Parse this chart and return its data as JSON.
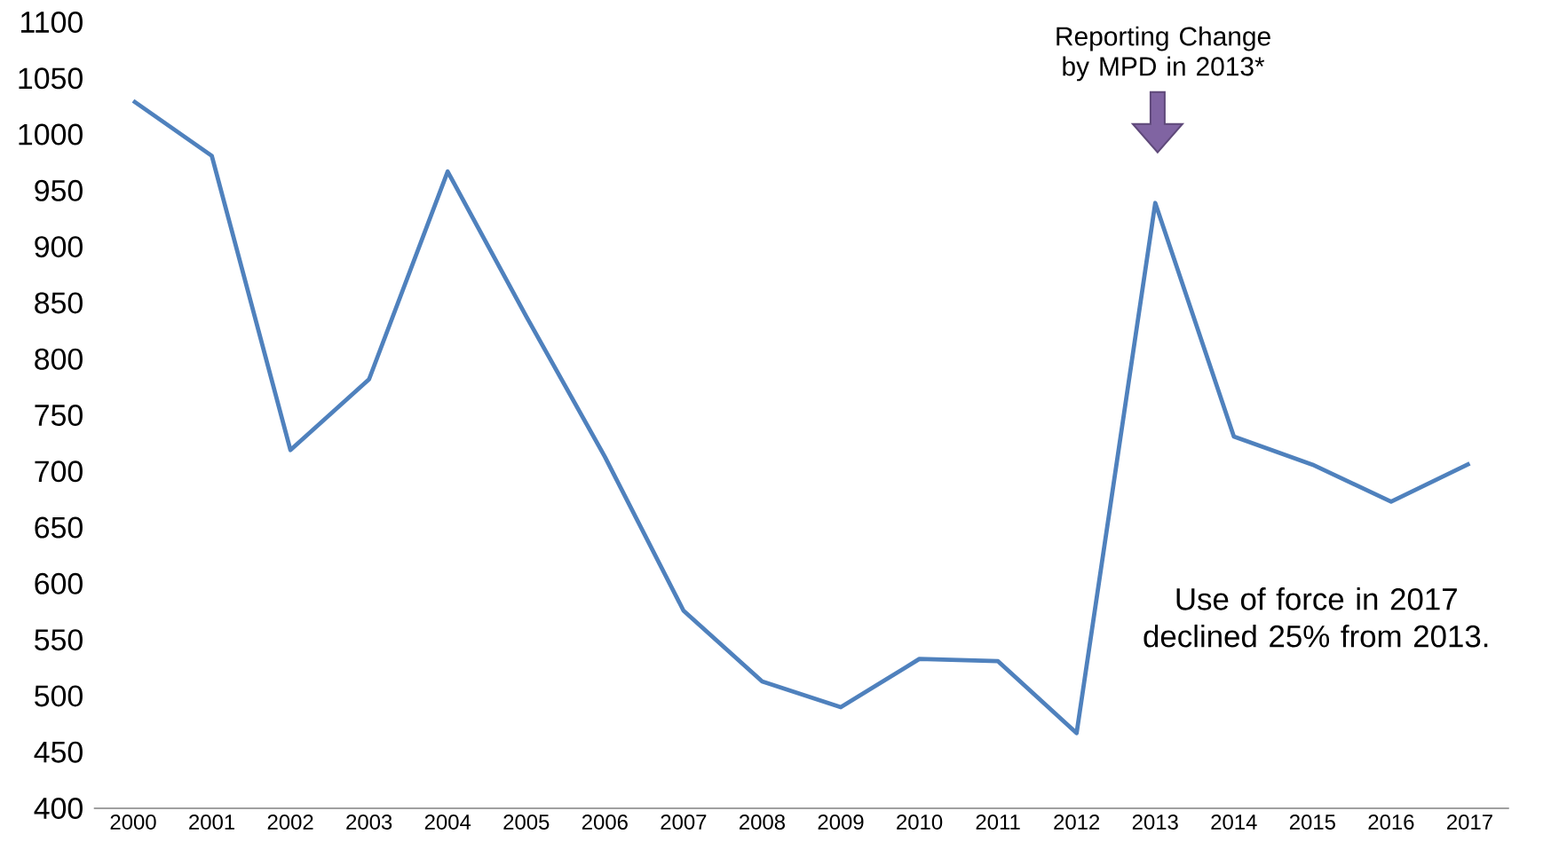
{
  "chart_data": {
    "type": "line",
    "categories": [
      "2000",
      "2001",
      "2002",
      "2003",
      "2004",
      "2005",
      "2006",
      "2007",
      "2008",
      "2009",
      "2010",
      "2011",
      "2012",
      "2013",
      "2014",
      "2015",
      "2016",
      "2017"
    ],
    "values": [
      1030,
      981,
      719,
      782,
      967,
      838,
      713,
      576,
      513,
      490,
      533,
      531,
      467,
      939,
      731,
      706,
      673,
      707
    ],
    "color": "#4f81bd",
    "ylim": [
      400,
      1100
    ],
    "yticks": [
      400,
      450,
      500,
      550,
      600,
      650,
      700,
      750,
      800,
      850,
      900,
      950,
      1000,
      1050,
      1100
    ],
    "grid": false,
    "marker": "none",
    "line_style": "solid",
    "annotations": [
      "Reporting Change by MPD in 2013*",
      "Use of force in 2017 declined 25% from 2013."
    ]
  }
}
